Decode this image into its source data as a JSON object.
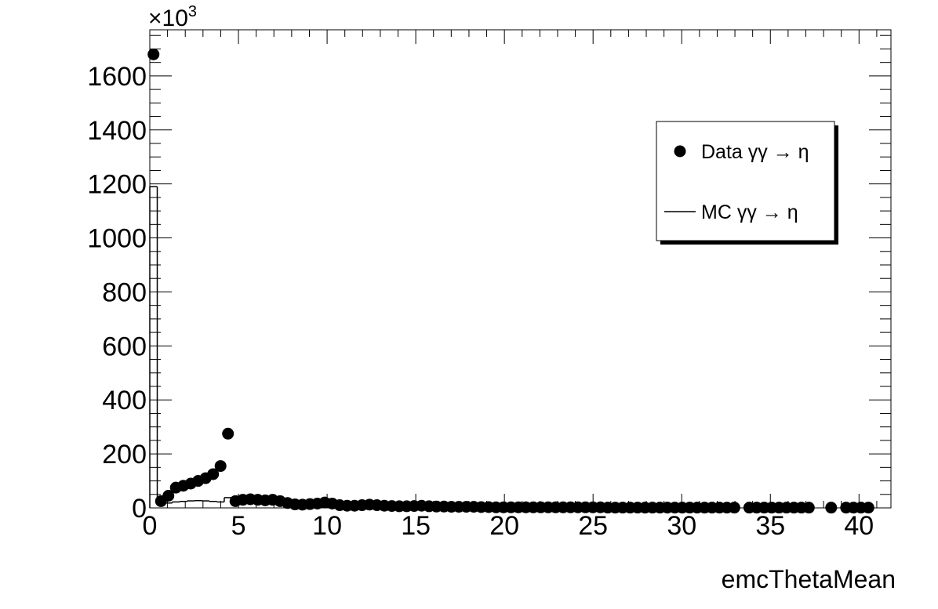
{
  "chart_data": {
    "type": "histogram-points",
    "x_label": "emcThetaMean",
    "multiplier": {
      "base": "×10",
      "exponent": "3"
    },
    "xlim": [
      0,
      41.8
    ],
    "ylim": [
      0,
      1771
    ],
    "xticks": [
      0,
      5,
      10,
      15,
      20,
      25,
      30,
      35,
      40
    ],
    "yticks": [
      0,
      200,
      400,
      600,
      800,
      1000,
      1200,
      1400,
      1600
    ],
    "legend": "top-right",
    "x": [
      0.21,
      0.63,
      1.05,
      1.47,
      1.89,
      2.31,
      2.73,
      3.15,
      3.57,
      3.99,
      4.41,
      4.83,
      5.25,
      5.67,
      6.09,
      6.51,
      6.93,
      7.35,
      7.77,
      8.19,
      8.61,
      9.03,
      9.45,
      9.87,
      10.29,
      10.71,
      11.13,
      11.55,
      11.97,
      12.39,
      12.81,
      13.23,
      13.65,
      14.07,
      14.49,
      14.91,
      15.33,
      15.75,
      16.17,
      16.59,
      17.01,
      17.43,
      17.85,
      18.27,
      18.69,
      19.11,
      19.53,
      19.95,
      20.37,
      20.79,
      21.21,
      21.63,
      22.05,
      22.47,
      22.89,
      23.31,
      23.73,
      24.15,
      24.57,
      24.99,
      25.41,
      25.83,
      26.25,
      26.67,
      27.09,
      27.51,
      27.93,
      28.35,
      28.77,
      29.19,
      29.61,
      30.03,
      30.45,
      30.87,
      31.29,
      31.71,
      32.13,
      32.55,
      32.97,
      33.81,
      34.23,
      34.65,
      35.07,
      35.49,
      35.91,
      36.33,
      36.75,
      37.17,
      38.43,
      39.27,
      39.69,
      40.11,
      40.53
    ],
    "series": [
      {
        "name": "Data γγ → η",
        "style": "points",
        "color": "#000000",
        "values": [
          1680,
          25,
          45,
          75,
          82,
          90,
          100,
          110,
          125,
          155,
          275,
          25,
          30,
          32,
          30,
          28,
          30,
          25,
          18,
          13,
          12,
          14,
          16,
          20,
          16,
          10,
          8,
          8,
          10,
          12,
          10,
          8,
          7,
          6,
          6,
          7,
          8,
          6,
          5,
          5,
          4,
          4,
          4,
          4,
          3,
          3,
          2,
          2,
          2,
          2,
          2,
          2,
          2,
          2,
          2,
          2,
          2,
          2,
          2,
          2,
          2,
          1,
          1,
          1,
          1,
          1,
          1,
          1,
          1,
          1,
          1,
          1,
          1,
          1,
          1,
          1,
          1,
          1,
          1,
          1,
          1,
          1,
          1,
          1,
          1,
          1,
          1,
          1,
          1,
          1,
          1,
          1,
          1
        ]
      },
      {
        "name": "MC γγ → η",
        "style": "step",
        "color": "#000000",
        "values": [
          1190,
          12,
          18,
          22,
          24,
          26,
          27,
          26,
          24,
          22,
          38,
          30,
          28,
          26,
          25,
          22,
          20,
          17,
          14,
          12,
          12,
          13,
          14,
          14,
          12,
          10,
          9,
          9,
          9,
          9,
          8,
          7,
          6,
          6,
          5,
          5,
          5,
          4,
          4,
          3,
          3,
          3,
          3,
          2,
          2,
          2,
          1,
          1,
          1,
          1,
          1,
          1,
          1,
          1,
          1,
          1,
          1,
          1,
          1,
          1,
          1,
          1,
          1,
          1,
          1,
          1,
          1,
          1,
          1,
          1,
          1,
          1,
          1,
          1,
          1,
          1,
          1,
          1,
          1,
          1,
          1,
          1,
          1,
          1,
          1,
          1,
          1,
          1,
          1,
          1,
          1,
          1,
          1
        ]
      }
    ]
  }
}
